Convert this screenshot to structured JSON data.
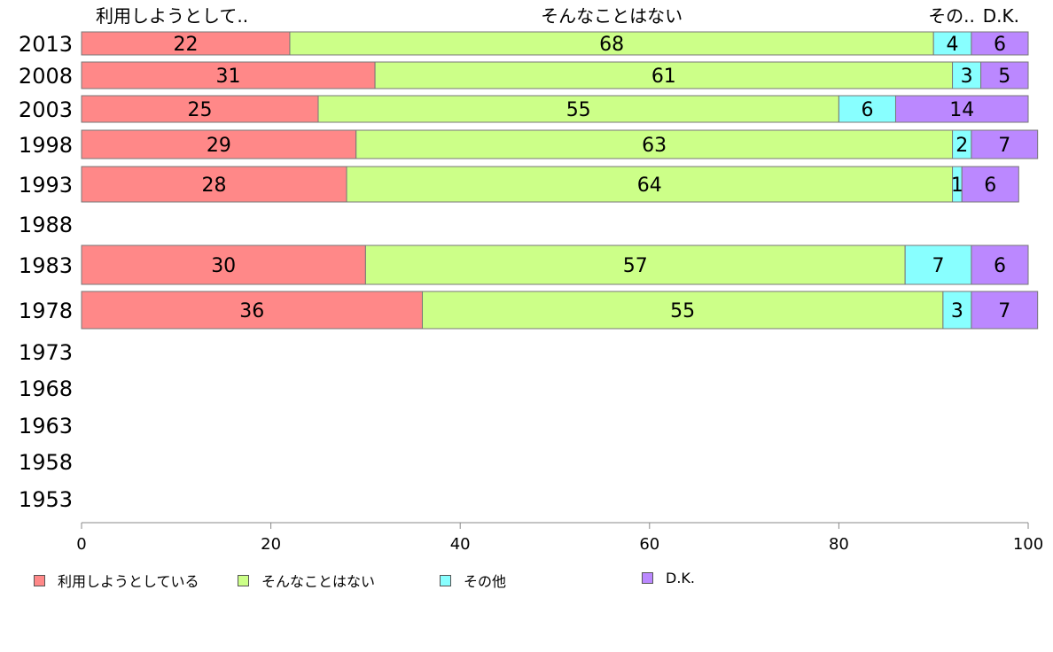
{
  "chart_data": {
    "type": "bar",
    "orientation": "horizontal",
    "stacked": true,
    "categories": [
      "2013",
      "2008",
      "2003",
      "1998",
      "1993",
      "1988",
      "1983",
      "1978",
      "1973",
      "1968",
      "1963",
      "1958",
      "1953"
    ],
    "series": [
      {
        "name": "利用しようとしている",
        "header": "利用しようとして..",
        "color": "#ff8888",
        "values": [
          22,
          31,
          25,
          29,
          28,
          null,
          30,
          36,
          null,
          null,
          null,
          null,
          null
        ]
      },
      {
        "name": "そんなことはない",
        "header": "そんなことはない",
        "color": "#ccff88",
        "values": [
          68,
          61,
          55,
          63,
          64,
          null,
          57,
          55,
          null,
          null,
          null,
          null,
          null
        ]
      },
      {
        "name": "その他",
        "header": "その..",
        "color": "#88ffff",
        "values": [
          4,
          3,
          6,
          2,
          1,
          null,
          7,
          3,
          null,
          null,
          null,
          null,
          null
        ]
      },
      {
        "name": "D.K.",
        "header": "D.K.",
        "color": "#bb88ff",
        "values": [
          6,
          5,
          14,
          7,
          6,
          null,
          6,
          7,
          null,
          null,
          null,
          null,
          null
        ]
      }
    ],
    "xlim": [
      0,
      100
    ],
    "xticks": [
      0,
      20,
      40,
      60,
      80,
      100
    ],
    "grid": false,
    "legend_position": "bottom"
  }
}
